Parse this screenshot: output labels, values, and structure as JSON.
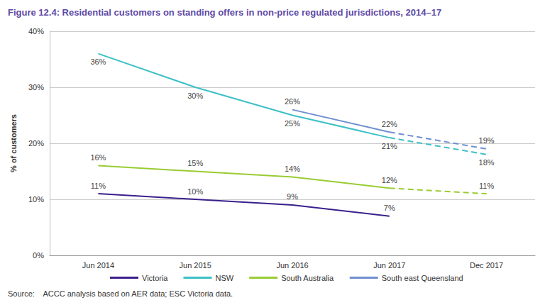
{
  "chart_data": {
    "type": "line",
    "title": "Figure 12.4: Residential customers on standing offers in non-price regulated jurisdictions, 2014–17",
    "source": "Source:    ACCC analysis based on AER data; ESC Victoria data.",
    "y_label": "% of customers",
    "categories": [
      "Jun 2014",
      "Jun 2015",
      "Jun 2016",
      "Jun 2017",
      "Dec 2017"
    ],
    "ylim": [
      0,
      40
    ],
    "yticks": [
      {
        "value": 0,
        "label": "0%"
      },
      {
        "value": 10,
        "label": "10%"
      },
      {
        "value": 20,
        "label": "20%"
      },
      {
        "value": 30,
        "label": "30%"
      },
      {
        "value": 40,
        "label": "40%"
      }
    ],
    "grid": true,
    "legend": "bottom",
    "data_labels": true,
    "series": [
      {
        "name": "Victoria",
        "color": "#3b1f8c",
        "line_style": "solid",
        "values": [
          11,
          10,
          9,
          7,
          null
        ],
        "value_labels": [
          "11%",
          "10%",
          "9%",
          "7%",
          null
        ]
      },
      {
        "name": "NSW",
        "color": "#3cc0c6",
        "line_style": "solid",
        "values": [
          36,
          30,
          25,
          21,
          null
        ],
        "value_labels": [
          "36%",
          "30%",
          "25%",
          "21%",
          null
        ]
      },
      {
        "name": "NSW",
        "color": "#3cc0c6",
        "line_style": "dashed",
        "values": [
          null,
          null,
          null,
          21,
          18
        ],
        "value_labels": [
          null,
          null,
          null,
          null,
          "18%"
        ]
      },
      {
        "name": "South Australia",
        "color": "#99cc33",
        "line_style": "solid",
        "values": [
          16,
          15,
          14,
          12,
          null
        ],
        "value_labels": [
          "16%",
          "15%",
          "14%",
          "12%",
          null
        ]
      },
      {
        "name": "South Australia",
        "color": "#99cc33",
        "line_style": "dashed",
        "values": [
          null,
          null,
          null,
          12,
          11
        ],
        "value_labels": [
          null,
          null,
          null,
          null,
          "11%"
        ]
      },
      {
        "name": "South east Queensland",
        "color": "#6f8fd1",
        "line_style": "solid",
        "values": [
          null,
          null,
          26,
          22,
          null
        ],
        "value_labels": [
          null,
          null,
          "26%",
          "22%",
          null
        ]
      },
      {
        "name": "South east Queensland",
        "color": "#6f8fd1",
        "line_style": "dashed",
        "values": [
          null,
          null,
          null,
          22,
          19
        ],
        "value_labels": [
          null,
          null,
          null,
          null,
          "19%"
        ]
      }
    ]
  }
}
